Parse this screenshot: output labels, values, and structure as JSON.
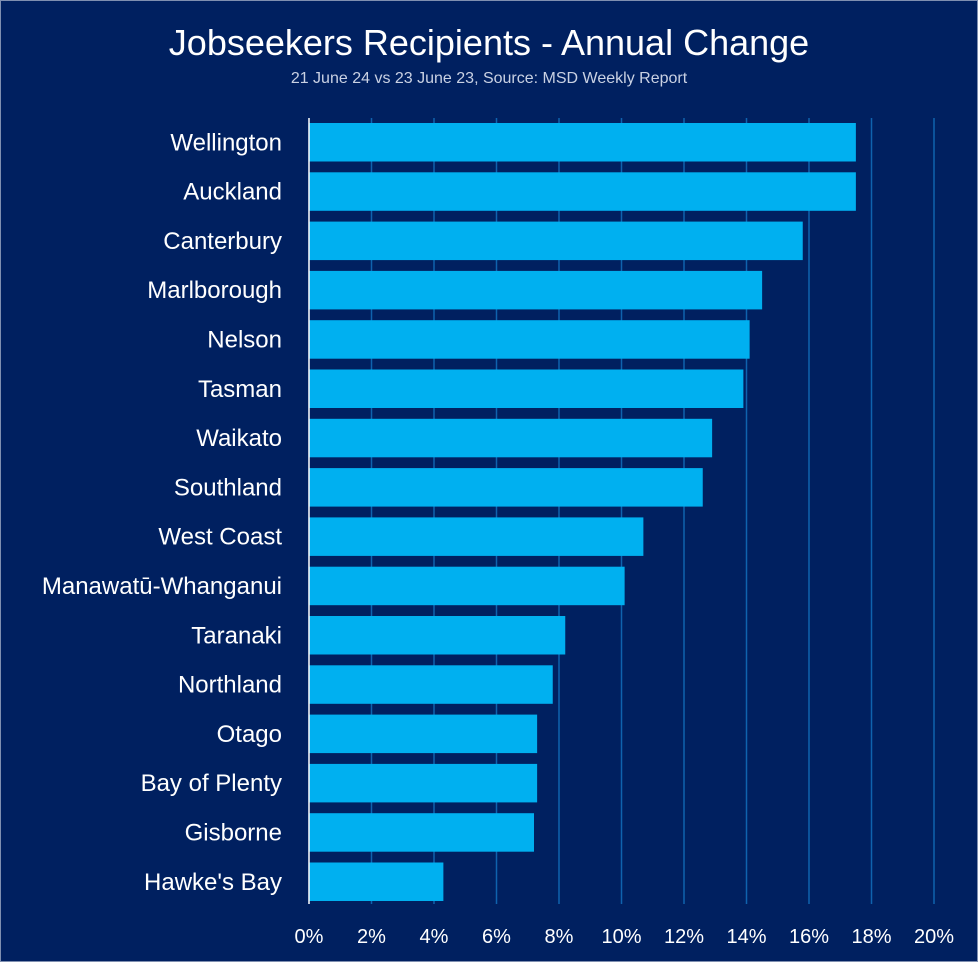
{
  "chart_data": {
    "type": "bar",
    "orientation": "horizontal",
    "title": "Jobseekers Recipients - Annual Change",
    "subtitle": "21 June 24 vs 23 June 23, Source: MSD Weekly Report",
    "categories": [
      "Wellington",
      "Auckland",
      "Canterbury",
      "Marlborough",
      "Nelson",
      "Tasman",
      "Waikato",
      "Southland",
      "West Coast",
      "Manawatū-Whanganui",
      "Taranaki",
      "Northland",
      "Otago",
      "Bay of Plenty",
      "Gisborne",
      "Hawke's Bay"
    ],
    "values": [
      17.5,
      17.5,
      15.8,
      14.5,
      14.1,
      13.9,
      12.9,
      12.6,
      10.7,
      10.1,
      8.2,
      7.8,
      7.3,
      7.3,
      7.2,
      4.3
    ],
    "xlim": [
      0,
      20
    ],
    "x_ticks": [
      0,
      2,
      4,
      6,
      8,
      10,
      12,
      14,
      16,
      18,
      20
    ],
    "x_tick_labels": [
      "0%",
      "2%",
      "4%",
      "6%",
      "8%",
      "10%",
      "12%",
      "14%",
      "16%",
      "18%",
      "20%"
    ],
    "grid": "vertical",
    "legend": "none",
    "colors": {
      "background": "#002060",
      "bar": "#00B0F0",
      "grid": "#0F63AE",
      "text": "#FFFFFF"
    }
  }
}
